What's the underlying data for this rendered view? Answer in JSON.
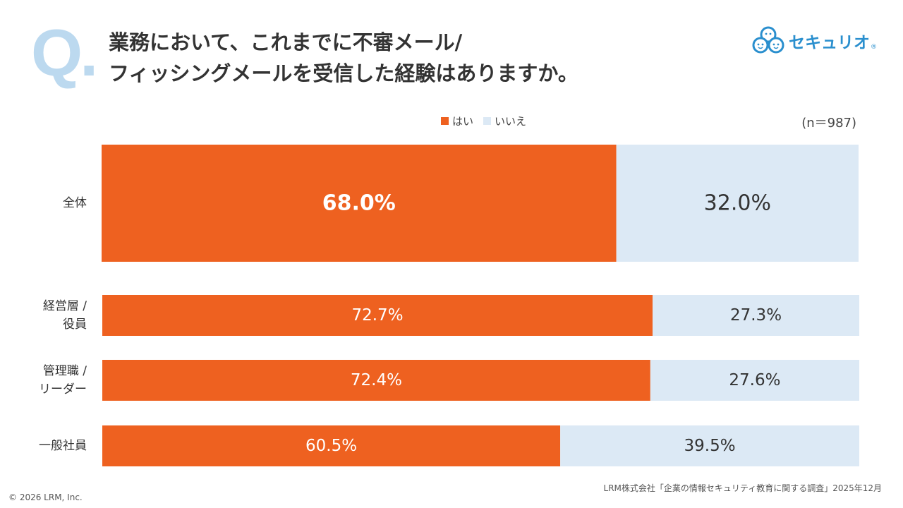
{
  "header": {
    "q_mark": "Q.",
    "question_line1": "業務において、これまでに不審メール/",
    "question_line2": "フィッシングメールを受信した経験はありますか。"
  },
  "logo": {
    "text": "セキュリオ",
    "registered": "®"
  },
  "sample_size": "(n＝987)",
  "footer": {
    "source": "LRM株式会社「企業の情報セキュリティ教育に関する調査」2025年12月",
    "copyright": "© 2026 LRM, Inc."
  },
  "colors": {
    "yes": "#ee6120",
    "no": "#dce9f5",
    "q_mark": "#bcd9ef",
    "logo": "#2a8fce"
  },
  "chart_data": {
    "type": "bar",
    "orientation": "horizontal",
    "stacked": true,
    "percent": true,
    "title": "業務において、これまでに不審メール/フィッシングメールを受信した経験はありますか。",
    "legend": [
      "はい",
      "いいえ"
    ],
    "legend_position": "top",
    "categories": [
      {
        "label": [
          "全体"
        ]
      },
      {
        "label": [
          "経営層 /",
          "役員"
        ]
      },
      {
        "label": [
          "管理職 /",
          "リーダー"
        ]
      },
      {
        "label": [
          "一般社員"
        ]
      }
    ],
    "series": [
      {
        "name": "はい",
        "values": [
          68.0,
          72.7,
          72.4,
          60.5
        ],
        "labels": [
          "68.0%",
          "72.7%",
          "72.4%",
          "60.5%"
        ]
      },
      {
        "name": "いいえ",
        "values": [
          32.0,
          27.3,
          27.6,
          39.5
        ],
        "labels": [
          "32.0%",
          "27.3%",
          "27.6%",
          "39.5%"
        ]
      }
    ],
    "xlim": [
      0,
      100
    ],
    "grid": false
  }
}
